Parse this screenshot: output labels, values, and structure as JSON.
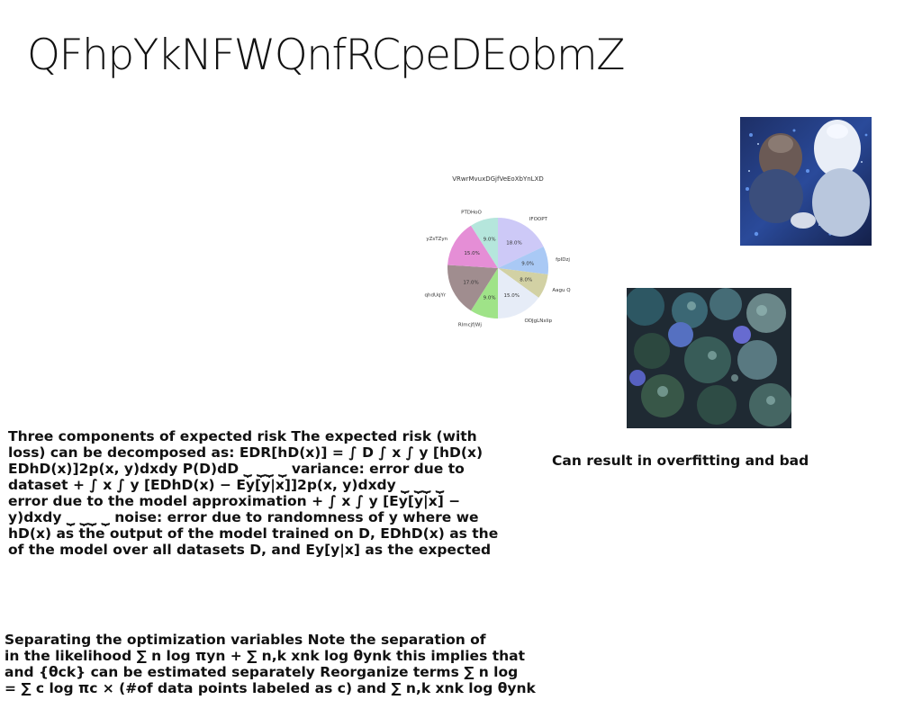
{
  "slide": {
    "title": "QFhpYkNFWQnfRCpeDEobmZ"
  },
  "paragraphs": {
    "risk": "Three components of expected risk The expected risk (with\nloss) can be decomposed as: EDR[hD(x)] = ∫ D ∫ x ∫ y [hD(x)\nEDhD(x)]2p(x, y)dxdy P(D)dD ⏟ ⏟⏟ ⏟ variance: error due to\ndataset + ∫ x ∫ y [EDhD(x) − Ey[y|x]]2p(x, y)dxdy ⏟ ⏟⏟ ⏟\nerror due to the model approximation + ∫ x ∫ y [Ey[y|x] −\ny)dxdy ⏟ ⏟⏟ ⏟ noise: error due to randomness of y where we\nhD(x) as the output of the model trained on D, EDhD(x) as the\nof the model over all datasets D, and Ey[y|x] as the expected",
    "side_note": "Can result in overfitting and bad",
    "optimization": "Separating the optimization variables Note the separation of\nin the likelihood ∑ n log πyn + ∑ n,k xnk log θynk this implies that\nand {θck} can be estimated separately Reorganize terms ∑ n log\n= ∑ c log πc × (#of data points labeled as c) and ∑ n,k xnk log θynk"
  },
  "images": {
    "winter_photo": "two people in winter hats among blue lights",
    "forest_photo": "aerial view of forest at dusk"
  },
  "chart_data": {
    "type": "pie",
    "title": "VRwrMvuxDGjfVeEoXbYnLXD",
    "labels": [
      "IFOOPT",
      "fpIDzj",
      "Aagu Q",
      "ODJgLNxlip",
      "Rlmcjf|Wj",
      "qhdUqYr",
      "yZsTZyn",
      "PTDHoO"
    ],
    "values": [
      18.0,
      9.0,
      8.0,
      15.0,
      9.0,
      17.0,
      15.0,
      9.0
    ],
    "pct_labels": [
      "18.0%",
      "9.0%",
      "8.0%",
      "15.0%",
      "9.0%",
      "17.0%",
      "15.0%",
      "9.0%"
    ],
    "colors": [
      "#cdc9f7",
      "#a9c9f5",
      "#d2d1a4",
      "#e6ecf7",
      "#9fe388",
      "#a08d8f",
      "#e58ed6",
      "#b5e6dc"
    ],
    "start_angle_deg": 90,
    "direction": "clockwise"
  }
}
